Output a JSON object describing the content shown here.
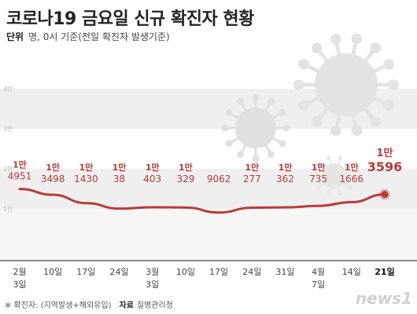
{
  "header": {
    "title": "코로나19 금요일 신규 확진자 현황",
    "unit_label": "단위",
    "unit_text": "명, 0시 기준(전일 확진자 발생기준)"
  },
  "chart_data": {
    "type": "line",
    "title": "코로나19 금요일 신규 확진자 현황",
    "ylim": [
      10000,
      40000
    ],
    "y_ticks": [
      {
        "value": 10000,
        "label": "1만"
      },
      {
        "value": 20000,
        "label": "2만"
      },
      {
        "value": 30000,
        "label": "3만"
      },
      {
        "value": 40000,
        "label": "4만"
      }
    ],
    "categories": [
      {
        "label": "2월",
        "sub": "3일"
      },
      {
        "label": "10일",
        "sub": ""
      },
      {
        "label": "17일",
        "sub": ""
      },
      {
        "label": "24일",
        "sub": ""
      },
      {
        "label": "3월",
        "sub": "3일"
      },
      {
        "label": "10일",
        "sub": ""
      },
      {
        "label": "17일",
        "sub": ""
      },
      {
        "label": "24일",
        "sub": ""
      },
      {
        "label": "31일",
        "sub": ""
      },
      {
        "label": "4월",
        "sub": "7일"
      },
      {
        "label": "14일",
        "sub": ""
      },
      {
        "label": "21일",
        "sub": ""
      }
    ],
    "values": [
      14951,
      13498,
      11430,
      10038,
      10403,
      10329,
      9062,
      10277,
      10362,
      10735,
      11666,
      13596
    ],
    "data_labels": [
      {
        "top": "1만",
        "bottom": "4951"
      },
      {
        "top": "1만",
        "bottom": "3498"
      },
      {
        "top": "1만",
        "bottom": "1430"
      },
      {
        "top": "1만",
        "bottom": "38"
      },
      {
        "top": "1만",
        "bottom": "403"
      },
      {
        "top": "1만",
        "bottom": "329"
      },
      {
        "top": "",
        "bottom": "9062"
      },
      {
        "top": "1만",
        "bottom": "277"
      },
      {
        "top": "1만",
        "bottom": "362"
      },
      {
        "top": "1만",
        "bottom": "735"
      },
      {
        "top": "1만",
        "bottom": "1666"
      },
      {
        "top": "1만",
        "bottom": "3596"
      }
    ],
    "highlight_index": 11,
    "colors": {
      "line": "#b93a3a",
      "label": "#b93a3a",
      "band": "#efefef",
      "axis": "#444444"
    }
  },
  "footer": {
    "note": "※ 확진자: (지역발생+해외유입)",
    "source_label": "자료",
    "source": "질병관리청"
  },
  "logo": {
    "text": "news1"
  }
}
